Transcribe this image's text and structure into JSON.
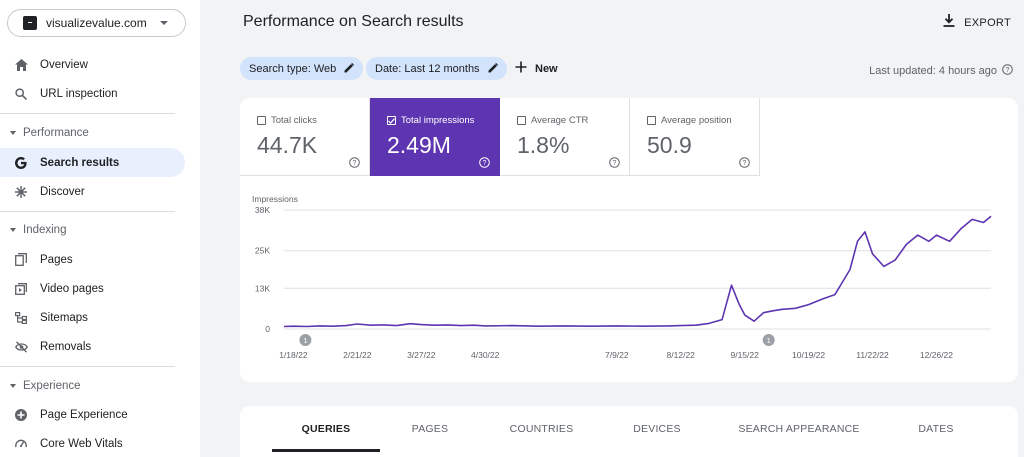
{
  "property": {
    "name": "visualizevalue.com"
  },
  "sidebar": {
    "top_items": [
      {
        "label": "Overview",
        "icon": "home-icon"
      },
      {
        "label": "URL inspection",
        "icon": "search-icon"
      }
    ],
    "sections": [
      {
        "label": "Performance",
        "items": [
          {
            "label": "Search results",
            "icon": "google-g-icon",
            "active": true
          },
          {
            "label": "Discover",
            "icon": "asterisk-icon"
          }
        ]
      },
      {
        "label": "Indexing",
        "items": [
          {
            "label": "Pages",
            "icon": "pages-icon"
          },
          {
            "label": "Video pages",
            "icon": "video-pages-icon"
          },
          {
            "label": "Sitemaps",
            "icon": "sitemap-icon"
          },
          {
            "label": "Removals",
            "icon": "eye-off-icon"
          }
        ]
      },
      {
        "label": "Experience",
        "items": [
          {
            "label": "Page Experience",
            "icon": "page-experience-icon"
          },
          {
            "label": "Core Web Vitals",
            "icon": "gauge-icon"
          }
        ]
      }
    ]
  },
  "header": {
    "title": "Performance on Search results",
    "export_label": "EXPORT"
  },
  "filters": {
    "search_type": "Search type: Web",
    "date": "Date: Last 12 months",
    "new_label": "New",
    "last_updated": "Last updated: 4 hours ago"
  },
  "metrics": [
    {
      "title": "Total clicks",
      "value": "44.7K",
      "selected": false
    },
    {
      "title": "Total impressions",
      "value": "2.49M",
      "selected": true
    },
    {
      "title": "Average CTR",
      "value": "1.8%",
      "selected": false
    },
    {
      "title": "Average position",
      "value": "50.9",
      "selected": false
    }
  ],
  "colors": {
    "accent": "#5e35b1",
    "chip": "#d2e3fc",
    "active_nav": "#e8f0fe"
  },
  "chart_data": {
    "type": "line",
    "ylabel": "Impressions",
    "y_ticks": [
      "38K",
      "25K",
      "13K",
      "0"
    ],
    "y_tick_values": [
      38000,
      25000,
      13000,
      0
    ],
    "ylim": [
      0,
      38000
    ],
    "x_ticks": [
      "1/18/22",
      "2/21/22",
      "3/27/22",
      "4/30/22",
      "7/9/22",
      "8/12/22",
      "9/15/22",
      "10/19/22",
      "11/22/22",
      "12/26/22"
    ],
    "annotations": [
      "1",
      "1"
    ],
    "series": [
      {
        "name": "Impressions",
        "color": "#5e35b1",
        "x": [
          "1/13/22",
          "1/18/22",
          "1/25/22",
          "2/1/22",
          "2/8/22",
          "2/15/22",
          "2/21/22",
          "2/28/22",
          "3/7/22",
          "3/14/22",
          "3/21/22",
          "3/27/22",
          "4/3/22",
          "4/10/22",
          "4/17/22",
          "4/24/22",
          "4/30/22",
          "5/14/22",
          "5/28/22",
          "6/11/22",
          "6/25/22",
          "7/9/22",
          "7/23/22",
          "8/6/22",
          "8/12/22",
          "8/20/22",
          "8/27/22",
          "9/3/22",
          "9/8/22",
          "9/12/22",
          "9/15/22",
          "9/20/22",
          "9/25/22",
          "9/30/22",
          "10/5/22",
          "10/12/22",
          "10/19/22",
          "10/26/22",
          "11/2/22",
          "11/6/22",
          "11/10/22",
          "11/14/22",
          "11/18/22",
          "11/22/22",
          "11/28/22",
          "12/4/22",
          "12/10/22",
          "12/16/22",
          "12/22/22",
          "12/26/22",
          "1/2/23",
          "1/8/23",
          "1/14/23",
          "1/20/23",
          "1/24/23"
        ],
        "values": [
          800,
          900,
          800,
          1000,
          900,
          1100,
          1600,
          1200,
          1300,
          1100,
          1700,
          1400,
          1200,
          1300,
          1100,
          1200,
          1000,
          1100,
          900,
          1000,
          900,
          1000,
          900,
          1000,
          1100,
          1200,
          1800,
          3000,
          14000,
          8000,
          4500,
          2500,
          5200,
          5800,
          6300,
          6600,
          7800,
          9500,
          11000,
          15000,
          19000,
          28000,
          31000,
          24000,
          20000,
          22000,
          27000,
          30000,
          28000,
          30000,
          28000,
          32000,
          35000,
          34000,
          36000
        ]
      }
    ]
  },
  "tabs": [
    "QUERIES",
    "PAGES",
    "COUNTRIES",
    "DEVICES",
    "SEARCH APPEARANCE",
    "DATES"
  ]
}
